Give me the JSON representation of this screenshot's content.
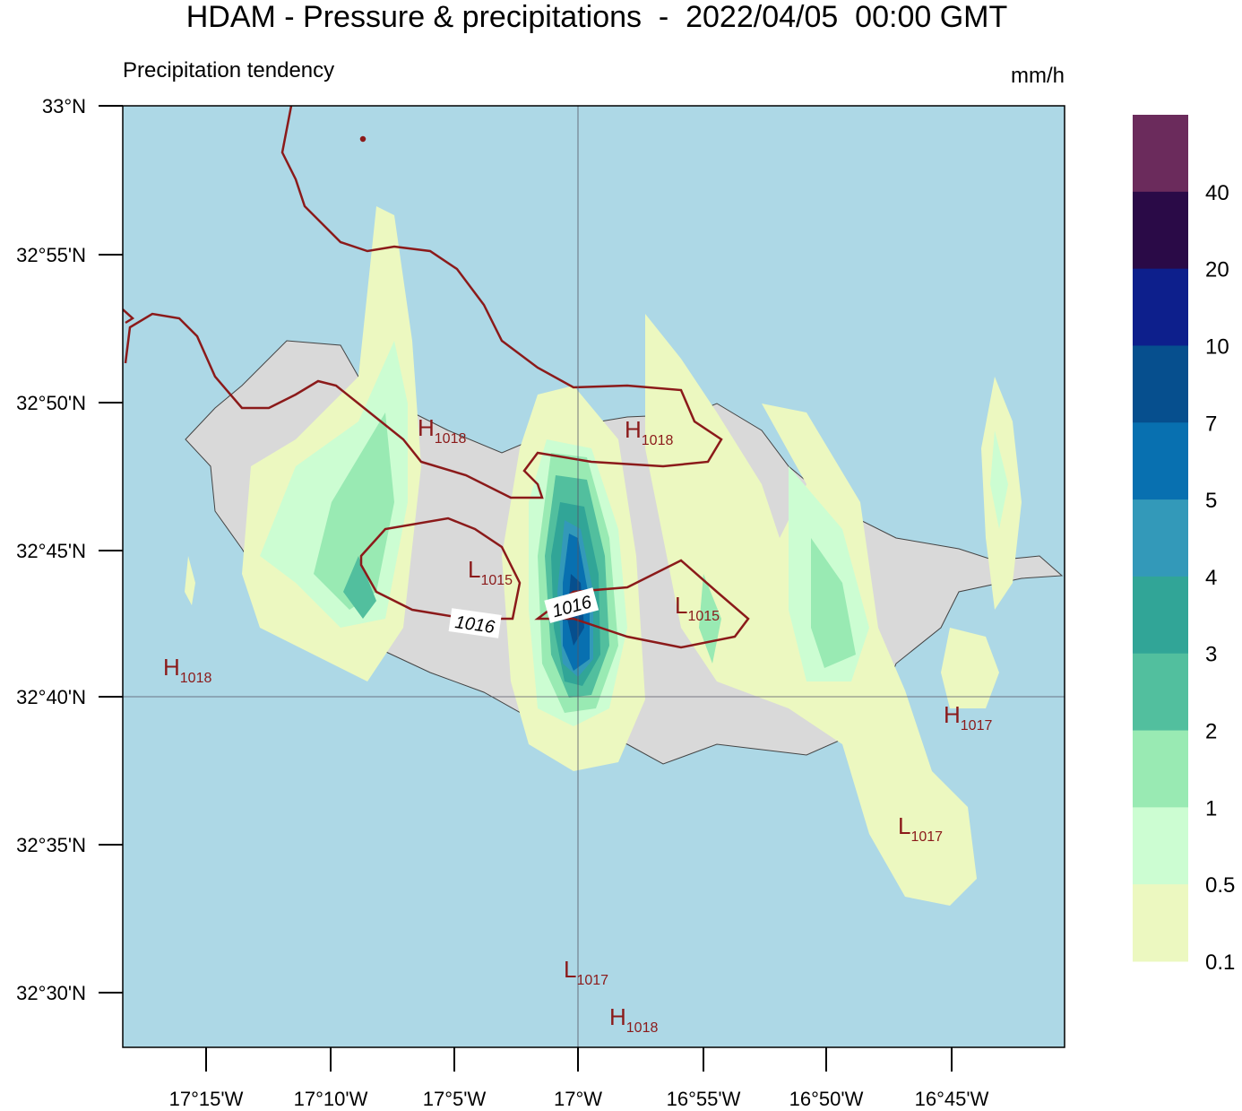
{
  "header": {
    "title": "HDAM - Pressure & precipitations  -  2022/04/05  00:00 GMT",
    "subtitle": "Precipitation tendency",
    "unit": "mm/h"
  },
  "axes": {
    "y_labels": [
      "33°N",
      "32°55'N",
      "32°50'N",
      "32°45'N",
      "32°40'N",
      "32°35'N",
      "32°30'N"
    ],
    "x_labels": [
      "17°15'W",
      "17°10'W",
      "17°5'W",
      "17°W",
      "16°55'W",
      "16°50'W",
      "16°45'W"
    ]
  },
  "pressure_labels": [
    {
      "letter": "H",
      "value": "1018"
    },
    {
      "letter": "H",
      "value": "1018"
    },
    {
      "letter": "L",
      "value": "1015"
    },
    {
      "letter": "L",
      "value": "1015"
    },
    {
      "letter": "H",
      "value": "1018"
    },
    {
      "letter": "H",
      "value": "1017"
    },
    {
      "letter": "L",
      "value": "1017"
    },
    {
      "letter": "L",
      "value": "1017"
    },
    {
      "letter": "H",
      "value": "1018"
    }
  ],
  "contour_labels": [
    "1016",
    "1016"
  ],
  "colorbar": {
    "labels": [
      40,
      20,
      10,
      7,
      5,
      4,
      3,
      2,
      1,
      0.5,
      0.1
    ],
    "colors": [
      "#6b2b5c",
      "#2a0a47",
      "#0d1f8c",
      "#064f8e",
      "#0870b0",
      "#3399b9",
      "#31a597",
      "#52bf9e",
      "#99eab3",
      "#ccfdd2",
      "#ecf8c0"
    ]
  }
}
